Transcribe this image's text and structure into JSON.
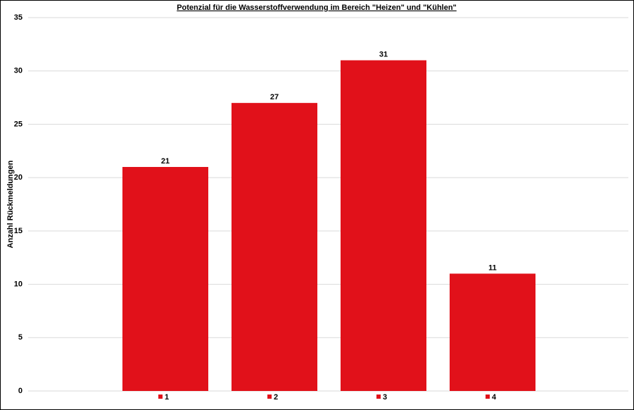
{
  "chart_data": {
    "type": "bar",
    "title": "Potenzial für die Wasserstoffverwendung im Bereich \"Heizen\" und \"Kühlen\"",
    "y_label": "Anzahl Rückmeldungen",
    "categories": [
      "1",
      "2",
      "3",
      "4"
    ],
    "values": [
      21,
      27,
      31,
      11
    ],
    "color": "#e1111a",
    "ylim": [
      0,
      35
    ],
    "yticks": [
      0,
      5,
      10,
      15,
      20,
      25,
      30,
      35
    ],
    "grid": true
  }
}
